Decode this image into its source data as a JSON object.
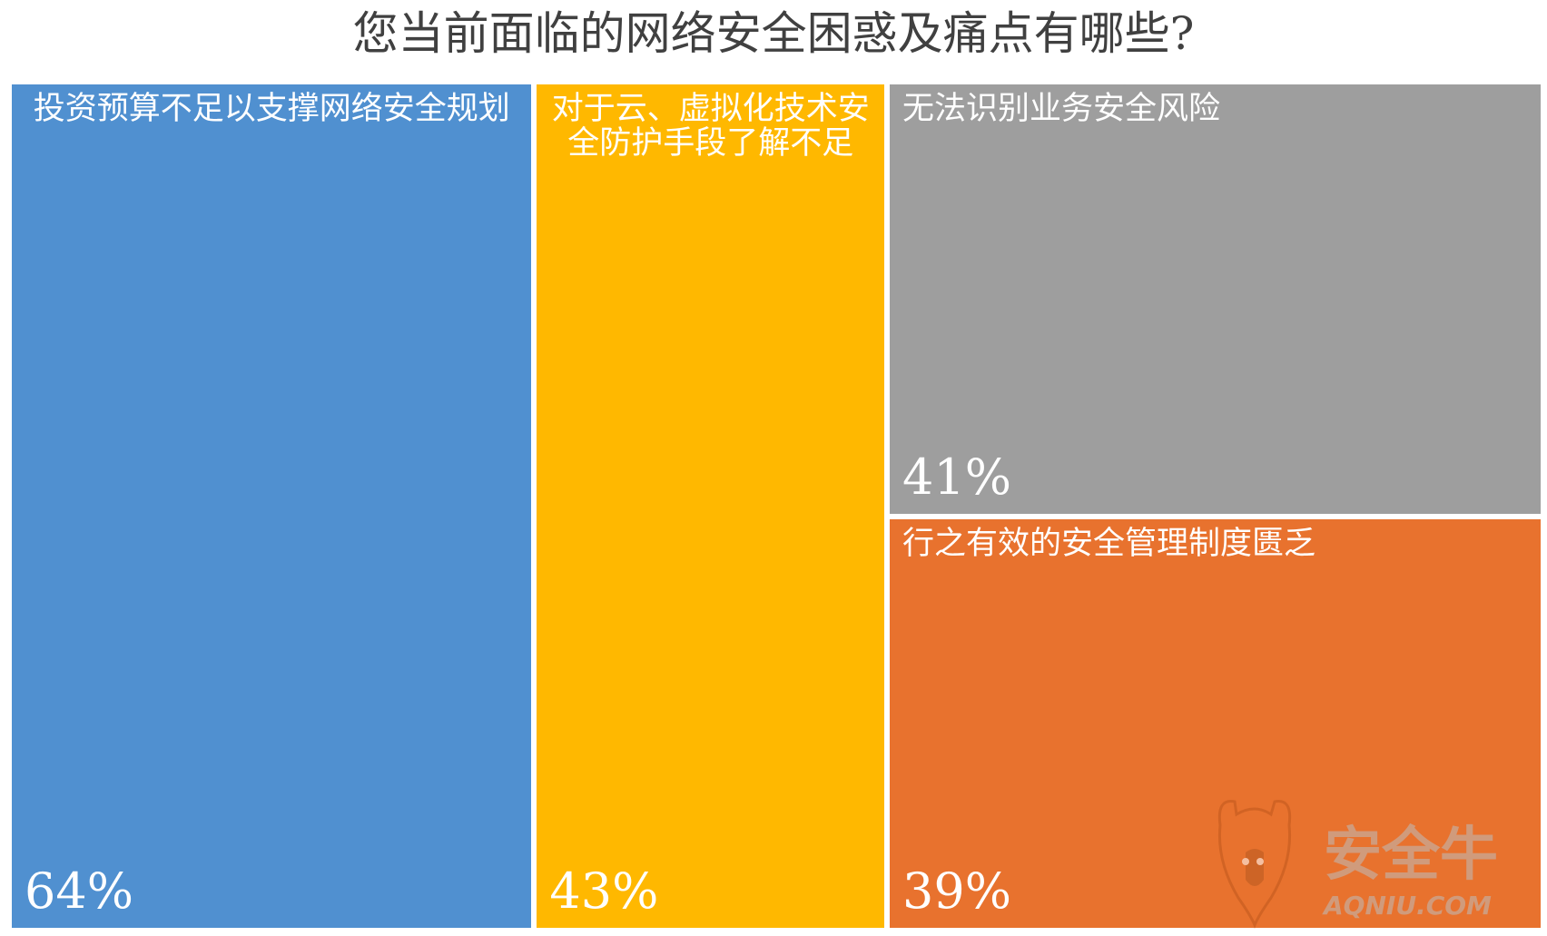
{
  "chart_data": {
    "type": "treemap",
    "title": "您当前面临的网络安全困惑及痛点有哪些?",
    "items": [
      {
        "label": "投资预算不足以支撑网络安全规划",
        "value": 64,
        "value_label": "64%",
        "color": "#5090D0"
      },
      {
        "label": "对于云、虚拟化技术安全防护手段了解不足",
        "value": 43,
        "value_label": "43%",
        "color": "#FFB800"
      },
      {
        "label": "无法识别业务安全风险",
        "value": 41,
        "value_label": "41%",
        "color": "#9E9E9E"
      },
      {
        "label": "行之有效的安全管理制度匮乏",
        "value": 39,
        "value_label": "39%",
        "color": "#E8722E"
      }
    ]
  },
  "watermark": {
    "brand_cn": "安全牛",
    "brand_url": "AQNIU.COM",
    "icon": "bull-head-shield-icon"
  }
}
